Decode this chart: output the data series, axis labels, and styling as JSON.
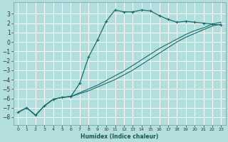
{
  "xlabel": "Humidex (Indice chaleur)",
  "background_color": "#b2dede",
  "grid_color": "#d0eeee",
  "line_color": "#1a6b6b",
  "xlim": [
    -0.5,
    23.5
  ],
  "ylim": [
    -8.8,
    4.2
  ],
  "yticks": [
    3,
    2,
    1,
    0,
    -1,
    -2,
    -3,
    -4,
    -5,
    -6,
    -7,
    -8
  ],
  "xticks": [
    0,
    1,
    2,
    3,
    4,
    5,
    6,
    7,
    8,
    9,
    10,
    11,
    12,
    13,
    14,
    15,
    16,
    17,
    18,
    19,
    20,
    21,
    22,
    23
  ],
  "line1_x": [
    0,
    1,
    2,
    3,
    4,
    5,
    6,
    7,
    8,
    9,
    10,
    11,
    12,
    13,
    14,
    15,
    16,
    17,
    18,
    19,
    20,
    21,
    22,
    23
  ],
  "line1_y": [
    -7.5,
    -7.0,
    -7.8,
    -6.8,
    -6.1,
    -5.9,
    -5.8,
    -4.4,
    -1.6,
    0.2,
    2.2,
    3.4,
    3.2,
    3.2,
    3.4,
    3.3,
    2.8,
    2.4,
    2.1,
    2.2,
    2.1,
    2.0,
    1.9,
    1.8
  ],
  "line2_x": [
    0,
    1,
    2,
    3,
    4,
    5,
    6,
    7,
    8,
    9,
    10,
    11,
    12,
    13,
    14,
    15,
    16,
    17,
    18,
    19,
    20,
    21,
    22,
    23
  ],
  "line2_y": [
    -7.5,
    -7.0,
    -7.8,
    -6.8,
    -6.1,
    -5.9,
    -5.8,
    -5.5,
    -5.2,
    -4.8,
    -4.4,
    -4.0,
    -3.5,
    -3.0,
    -2.4,
    -1.8,
    -1.2,
    -0.6,
    0.0,
    0.5,
    0.9,
    1.3,
    1.7,
    1.9
  ],
  "line3_x": [
    0,
    1,
    2,
    3,
    4,
    5,
    6,
    7,
    8,
    9,
    10,
    11,
    12,
    13,
    14,
    15,
    16,
    17,
    18,
    19,
    20,
    21,
    22,
    23
  ],
  "line3_y": [
    -7.5,
    -7.0,
    -7.8,
    -6.8,
    -6.1,
    -5.9,
    -5.8,
    -5.4,
    -5.0,
    -4.6,
    -4.1,
    -3.6,
    -3.1,
    -2.5,
    -1.9,
    -1.3,
    -0.7,
    -0.2,
    0.3,
    0.8,
    1.2,
    1.5,
    1.9,
    2.1
  ]
}
